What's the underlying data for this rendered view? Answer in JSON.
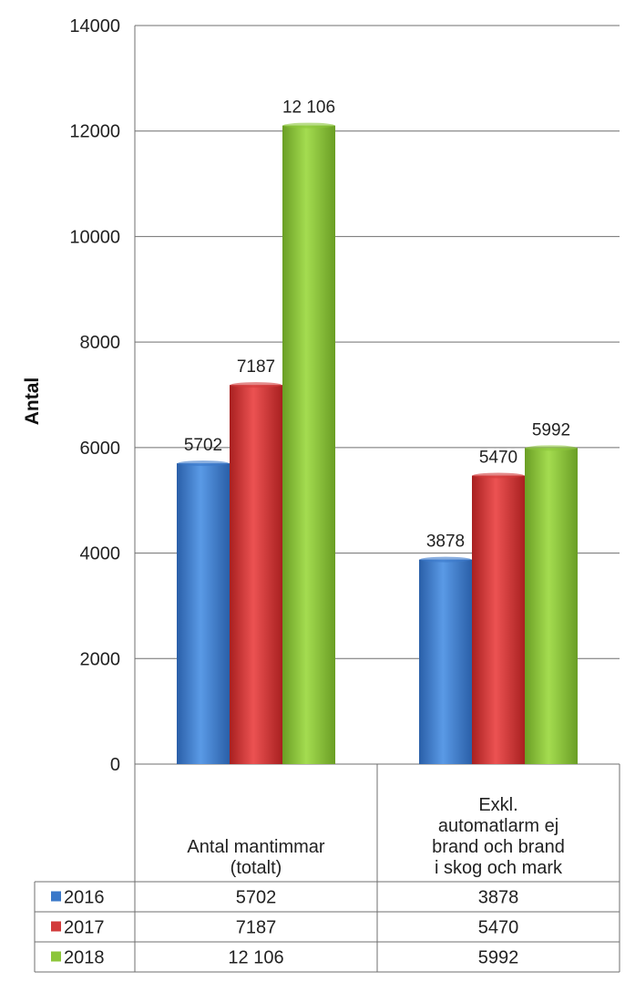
{
  "chart_data": {
    "type": "bar",
    "categories": [
      "Antal mantimmar\n(totalt)",
      "Exkl.\nautomatlarm ej\nbrand och brand\ni skog och mark"
    ],
    "series": [
      {
        "name": "2016",
        "values": [
          5702,
          3878
        ],
        "labels": [
          "5702",
          "3878"
        ],
        "color": "#3a78c9"
      },
      {
        "name": "2017",
        "values": [
          7187,
          5470
        ],
        "labels": [
          "7187",
          "5470"
        ],
        "color": "#d23a3a"
      },
      {
        "name": "2018",
        "values": [
          12106,
          5992
        ],
        "labels": [
          "12 106",
          "5992"
        ],
        "color": "#8cc63a"
      }
    ],
    "ylabel": "Antal",
    "xlabel": "",
    "ylim": [
      0,
      14000
    ],
    "yticks": [
      "0",
      "2000",
      "4000",
      "6000",
      "8000",
      "10000",
      "12000",
      "14000"
    ],
    "grid": true,
    "legend": "data-table-below"
  }
}
